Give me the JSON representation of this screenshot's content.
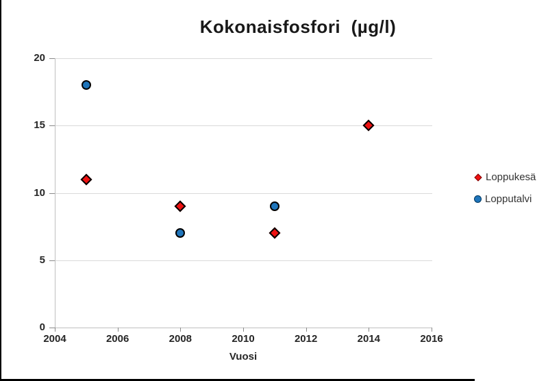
{
  "title": "Kokonaisfosfori  (µg/l)",
  "chart_data": {
    "type": "scatter",
    "title": "Kokonaisfosfori  (µg/l)",
    "xlabel": "Vuosi",
    "ylabel": "",
    "xlim": [
      2004,
      2016
    ],
    "ylim": [
      0,
      20
    ],
    "x_ticks": [
      2004,
      2006,
      2008,
      2010,
      2012,
      2014,
      2016
    ],
    "y_ticks": [
      0,
      5,
      10,
      15,
      20
    ],
    "grid": "horizontal",
    "legend_position": "right",
    "series": [
      {
        "name": "Loppukesä",
        "marker": "diamond",
        "color": "#ee1111",
        "points": [
          [
            2005,
            11
          ],
          [
            2008,
            9
          ],
          [
            2011,
            7
          ],
          [
            2014,
            15
          ]
        ]
      },
      {
        "name": "Lopputalvi",
        "marker": "circle",
        "color": "#1f75bb",
        "points": [
          [
            2005,
            18
          ],
          [
            2008,
            7
          ],
          [
            2011,
            9
          ]
        ]
      }
    ]
  }
}
